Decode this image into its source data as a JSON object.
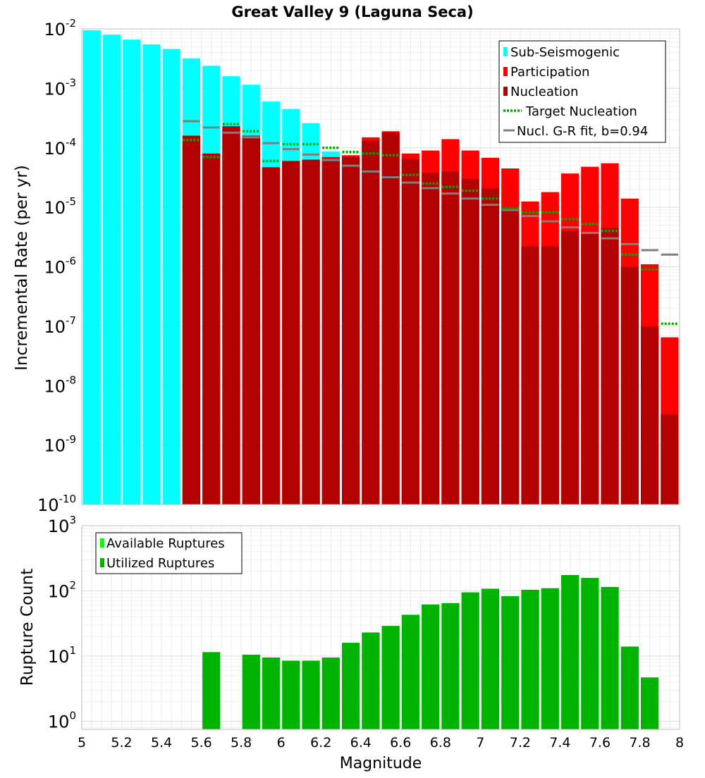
{
  "chart_data": {
    "type": "bar",
    "title": "Great Valley 9 (Laguna Seca)",
    "xlabel": "Magnitude",
    "x_ticks": [
      "5",
      "5.2",
      "5.4",
      "5.6",
      "5.8",
      "6",
      "6.2",
      "6.4",
      "6.6",
      "6.8",
      "7",
      "7.2",
      "7.4",
      "7.6",
      "7.8",
      "8"
    ],
    "xlim": [
      5.0,
      8.0
    ],
    "bin_width": 0.1,
    "colors": {
      "sub_seismogenic": "#00ffff",
      "participation": "#ff0000",
      "nucleation": "#b30000",
      "target_nucleation": "#00aa00",
      "gr_fit": "#7f7f7f",
      "available": "#00ff00",
      "utilized": "#00b300"
    },
    "top": {
      "ylabel": "Incremental Rate (per yr)",
      "yscale": "log",
      "ylim": [
        1e-10,
        0.01
      ],
      "y_ticks": [
        {
          "base": "10",
          "exp": "-10"
        },
        {
          "base": "10",
          "exp": "-9"
        },
        {
          "base": "10",
          "exp": "-8"
        },
        {
          "base": "10",
          "exp": "-7"
        },
        {
          "base": "10",
          "exp": "-6"
        },
        {
          "base": "10",
          "exp": "-5"
        },
        {
          "base": "10",
          "exp": "-4"
        },
        {
          "base": "10",
          "exp": "-3"
        },
        {
          "base": "10",
          "exp": "-2"
        }
      ],
      "legend": [
        {
          "key": "sub",
          "label": "Sub-Seismogenic"
        },
        {
          "key": "part",
          "label": "Participation"
        },
        {
          "key": "nucl",
          "label": "Nucleation"
        },
        {
          "key": "target",
          "label": "Target Nucleation"
        },
        {
          "key": "gr",
          "label": "Nucl. G-R fit, b=0.94"
        }
      ],
      "series": [
        {
          "key": "sub",
          "bins": [
            [
              5.05,
              0.0095
            ],
            [
              5.15,
              0.008
            ],
            [
              5.25,
              0.0066
            ],
            [
              5.35,
              0.0055
            ],
            [
              5.45,
              0.0046
            ],
            [
              5.55,
              0.0032
            ],
            [
              5.65,
              0.0024
            ],
            [
              5.75,
              0.0016
            ],
            [
              5.85,
              0.00115
            ],
            [
              5.95,
              0.0006
            ],
            [
              6.05,
              0.00045
            ],
            [
              6.15,
              0.00026
            ],
            [
              6.25,
              8.7e-05
            ]
          ]
        },
        {
          "key": "part",
          "bins": [
            [
              5.55,
              0.00016
            ],
            [
              5.65,
              8e-05
            ],
            [
              5.75,
              0.00023
            ],
            [
              5.85,
              0.00016
            ],
            [
              5.95,
              4.7e-05
            ],
            [
              6.05,
              6e-05
            ],
            [
              6.15,
              6.3e-05
            ],
            [
              6.25,
              7e-05
            ],
            [
              6.35,
              7.5e-05
            ],
            [
              6.45,
              0.00015
            ],
            [
              6.55,
              0.00019
            ],
            [
              6.65,
              8e-05
            ],
            [
              6.75,
              9e-05
            ],
            [
              6.85,
              0.00014
            ],
            [
              6.95,
              9e-05
            ],
            [
              7.05,
              6.8e-05
            ],
            [
              7.15,
              4.5e-05
            ],
            [
              7.25,
              1.25e-05
            ],
            [
              7.35,
              1.8e-05
            ],
            [
              7.45,
              3.7e-05
            ],
            [
              7.55,
              4.8e-05
            ],
            [
              7.65,
              5.5e-05
            ],
            [
              7.75,
              1.4e-05
            ],
            [
              7.85,
              1.1e-06
            ],
            [
              7.95,
              6.5e-08
            ]
          ]
        },
        {
          "key": "nucl",
          "bins": [
            [
              5.55,
              0.00016
            ],
            [
              5.65,
              8e-05
            ],
            [
              5.75,
              0.00023
            ],
            [
              5.85,
              0.00016
            ],
            [
              5.95,
              4.7e-05
            ],
            [
              6.05,
              6e-05
            ],
            [
              6.15,
              6.3e-05
            ],
            [
              6.25,
              6.5e-05
            ],
            [
              6.35,
              7e-05
            ],
            [
              6.45,
              0.00013
            ],
            [
              6.55,
              0.00018
            ],
            [
              6.65,
              6.5e-05
            ],
            [
              6.75,
              3.8e-05
            ],
            [
              6.85,
              4e-05
            ],
            [
              6.95,
              3e-05
            ],
            [
              7.05,
              2.1e-05
            ],
            [
              7.15,
              9.5e-06
            ],
            [
              7.25,
              2.2e-06
            ],
            [
              7.35,
              2.2e-06
            ],
            [
              7.45,
              4e-06
            ],
            [
              7.55,
              3.8e-06
            ],
            [
              7.65,
              4.5e-06
            ],
            [
              7.75,
              1e-06
            ],
            [
              7.85,
              1e-07
            ],
            [
              7.95,
              3.3e-09
            ]
          ]
        },
        {
          "key": "target",
          "bins": [
            [
              5.55,
              0.000135
            ],
            [
              5.65,
              7e-05
            ],
            [
              5.75,
              0.00025
            ],
            [
              5.85,
              0.00019
            ],
            [
              5.95,
              6e-05
            ],
            [
              6.05,
              0.000115
            ],
            [
              6.15,
              0.000115
            ],
            [
              6.25,
              0.0001
            ],
            [
              6.35,
              8.5e-05
            ],
            [
              6.45,
              8e-05
            ],
            [
              6.55,
              7.5e-05
            ],
            [
              6.65,
              3.5e-05
            ],
            [
              6.75,
              2.5e-05
            ],
            [
              6.85,
              2.2e-05
            ],
            [
              6.95,
              1.9e-05
            ],
            [
              7.05,
              1.4e-05
            ],
            [
              7.15,
              9.5e-06
            ],
            [
              7.25,
              8.2e-06
            ],
            [
              7.35,
              8.2e-06
            ],
            [
              7.45,
              6.3e-06
            ],
            [
              7.55,
              5.2e-06
            ],
            [
              7.65,
              4e-06
            ],
            [
              7.75,
              1.6e-06
            ],
            [
              7.85,
              9e-07
            ],
            [
              7.95,
              1.1e-07
            ]
          ]
        },
        {
          "key": "gr",
          "bins": [
            [
              5.55,
              0.00028
            ],
            [
              5.65,
              0.00022
            ],
            [
              5.75,
              0.00018
            ],
            [
              5.85,
              0.00015
            ],
            [
              5.95,
              0.00012
            ],
            [
              6.05,
              9.5e-05
            ],
            [
              6.15,
              7.7e-05
            ],
            [
              6.25,
              6.2e-05
            ],
            [
              6.35,
              5e-05
            ],
            [
              6.45,
              4e-05
            ],
            [
              6.55,
              3.2e-05
            ],
            [
              6.65,
              2.6e-05
            ],
            [
              6.75,
              2.1e-05
            ],
            [
              6.85,
              1.7e-05
            ],
            [
              6.95,
              1.4e-05
            ],
            [
              7.05,
              1.1e-05
            ],
            [
              7.15,
              9e-06
            ],
            [
              7.25,
              7.1e-06
            ],
            [
              7.35,
              5.8e-06
            ],
            [
              7.45,
              4.6e-06
            ],
            [
              7.55,
              3.7e-06
            ],
            [
              7.65,
              3e-06
            ],
            [
              7.75,
              2.4e-06
            ],
            [
              7.85,
              1.9e-06
            ],
            [
              7.95,
              1.6e-06
            ]
          ]
        }
      ]
    },
    "bottom": {
      "ylabel": "Rupture Count",
      "yscale": "log",
      "ylim": [
        0.75,
        1000
      ],
      "y_ticks": [
        {
          "base": "10",
          "exp": "0",
          "value": 1
        },
        {
          "base": "10",
          "exp": "1",
          "value": 10
        },
        {
          "base": "10",
          "exp": "2",
          "value": 100
        },
        {
          "base": "10",
          "exp": "3",
          "value": 1000
        }
      ],
      "legend": [
        {
          "key": "available",
          "label": "Available Ruptures"
        },
        {
          "key": "utilized",
          "label": "Utilized Ruptures"
        }
      ],
      "series": [
        {
          "key": "utilized",
          "bins": [
            [
              5.65,
              11.5
            ],
            [
              5.85,
              10.5
            ],
            [
              5.95,
              9.5
            ],
            [
              6.05,
              8.5
            ],
            [
              6.15,
              8.5
            ],
            [
              6.25,
              9.5
            ],
            [
              6.35,
              16
            ],
            [
              6.45,
              23
            ],
            [
              6.55,
              29
            ],
            [
              6.65,
              43
            ],
            [
              6.75,
              62
            ],
            [
              6.85,
              65
            ],
            [
              6.95,
              95
            ],
            [
              7.05,
              108
            ],
            [
              7.15,
              83
            ],
            [
              7.25,
              104
            ],
            [
              7.35,
              110
            ],
            [
              7.45,
              175
            ],
            [
              7.55,
              158
            ],
            [
              7.65,
              115
            ],
            [
              7.75,
              14
            ],
            [
              7.85,
              4.7
            ]
          ]
        }
      ]
    }
  }
}
